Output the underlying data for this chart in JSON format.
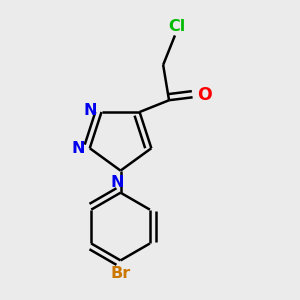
{
  "background_color": "#ebebeb",
  "bond_color": "#000000",
  "bond_width": 1.8,
  "fig_width": 3.0,
  "fig_height": 3.0,
  "dpi": 100,
  "colors": {
    "Cl": "#00bb00",
    "O": "#ff0000",
    "N": "#0000ee",
    "Br": "#cc7700",
    "C": "#000000"
  }
}
